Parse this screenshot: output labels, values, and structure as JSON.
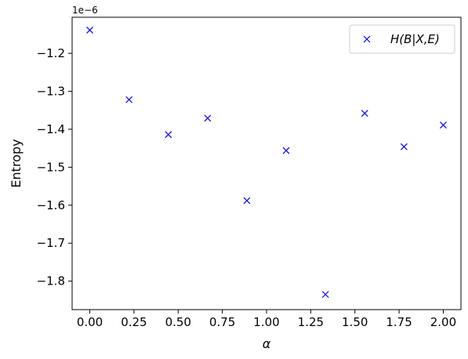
{
  "chart_data": {
    "type": "scatter",
    "xlabel": "α",
    "ylabel": "Entropy",
    "y_offset_label": "1e−6",
    "xlim": [
      -0.1,
      2.1
    ],
    "ylim": [
      -1.875,
      -1.105
    ],
    "x_ticks": [
      0.0,
      0.25,
      0.5,
      0.75,
      1.0,
      1.25,
      1.5,
      1.75,
      2.0
    ],
    "x_tick_labels": [
      "0.00",
      "0.25",
      "0.50",
      "0.75",
      "1.00",
      "1.25",
      "1.50",
      "1.75",
      "2.00"
    ],
    "y_ticks": [
      -1.8,
      -1.7,
      -1.6,
      -1.5,
      -1.4,
      -1.3,
      -1.2
    ],
    "y_tick_labels": [
      "−1.8",
      "−1.7",
      "−1.6",
      "−1.5",
      "−1.4",
      "−1.3",
      "−1.2"
    ],
    "grid": false,
    "legend_position": "top-right",
    "series": [
      {
        "name": "H(B|X,E)",
        "marker": "x",
        "color": "#0000ff",
        "x": [
          0.0,
          0.2222,
          0.4444,
          0.6667,
          0.8889,
          1.1111,
          1.3333,
          1.5556,
          1.7778,
          2.0
        ],
        "y": [
          -1.139,
          -1.322,
          -1.414,
          -1.371,
          -1.588,
          -1.456,
          -1.835,
          -1.358,
          -1.446,
          -1.389
        ]
      }
    ]
  }
}
